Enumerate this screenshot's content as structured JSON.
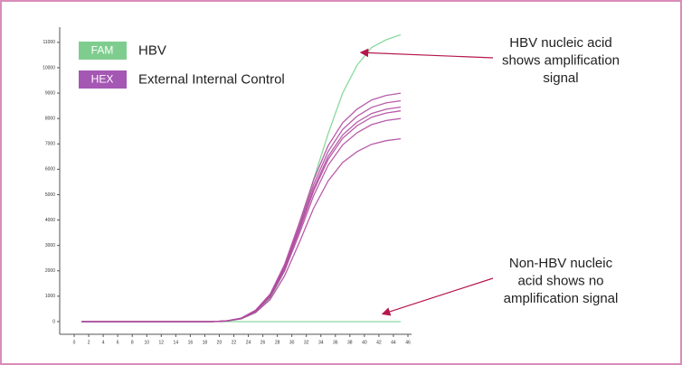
{
  "chart_data": {
    "type": "line",
    "x": [
      1,
      3,
      5,
      7,
      9,
      11,
      13,
      15,
      17,
      19,
      21,
      23,
      25,
      27,
      29,
      31,
      33,
      35,
      37,
      39,
      41,
      43,
      45
    ],
    "xlim": [
      -2,
      46.5
    ],
    "xticks": [
      0,
      2,
      4,
      6,
      8,
      10,
      12,
      14,
      16,
      18,
      20,
      22,
      24,
      26,
      28,
      30,
      32,
      34,
      36,
      38,
      40,
      42,
      44,
      46
    ],
    "ylim": [
      -500,
      11600
    ],
    "yticks": [
      0,
      1000,
      2000,
      3000,
      4000,
      5000,
      6000,
      7000,
      8000,
      9000,
      10000,
      11000
    ],
    "grid": false,
    "legend": "top-left",
    "series": [
      {
        "name": "HBV",
        "dye": "FAM",
        "color": "#80d496",
        "dye_color": "#7fcd8e",
        "curves": [
          [
            0,
            0,
            0,
            0,
            0,
            0,
            0,
            0,
            0,
            0,
            20,
            100,
            350,
            900,
            2000,
            3700,
            5600,
            7400,
            9000,
            10100,
            10800,
            11100,
            11300
          ],
          [
            0,
            0,
            0,
            0,
            0,
            0,
            0,
            0,
            0,
            0,
            0,
            0,
            0,
            0,
            0,
            0,
            0,
            0,
            0,
            0,
            0,
            0,
            0
          ]
        ]
      },
      {
        "name": "External Internal Control",
        "dye": "HEX",
        "color": "#b04aa0",
        "dye_color": "#a457b3",
        "curves": [
          [
            0,
            0,
            0,
            0,
            0,
            0,
            0,
            0,
            0,
            0,
            27,
            135,
            450,
            1080,
            2250,
            3870,
            5580,
            6930,
            7830,
            8370,
            8730,
            8910,
            9000
          ],
          [
            0,
            0,
            0,
            0,
            0,
            0,
            0,
            0,
            0,
            0,
            26,
            131,
            435,
            1044,
            2175,
            3741,
            5394,
            6699,
            7569,
            8091,
            8439,
            8613,
            8700
          ],
          [
            0,
            0,
            0,
            0,
            0,
            0,
            0,
            0,
            0,
            0,
            25,
            127,
            423,
            1014,
            2113,
            3634,
            5239,
            6507,
            7352,
            7859,
            8197,
            8366,
            8450
          ],
          [
            0,
            0,
            0,
            0,
            0,
            0,
            0,
            0,
            0,
            0,
            25,
            125,
            415,
            996,
            2075,
            3569,
            5146,
            6391,
            7221,
            7719,
            8051,
            8217,
            8300
          ],
          [
            0,
            0,
            0,
            0,
            0,
            0,
            0,
            0,
            0,
            0,
            24,
            120,
            400,
            960,
            2000,
            3440,
            4960,
            6160,
            6960,
            7440,
            7760,
            7920,
            8000
          ],
          [
            0,
            0,
            0,
            0,
            0,
            0,
            0,
            0,
            0,
            0,
            22,
            108,
            360,
            864,
            1800,
            3096,
            4464,
            5544,
            6264,
            6696,
            6984,
            7128,
            7200
          ]
        ]
      }
    ],
    "annotations": [
      {
        "lines": [
          "HBV nucleic acid",
          "shows amplification",
          "signal"
        ],
        "target": [
          39.5,
          10600
        ]
      },
      {
        "lines": [
          "Non-HBV nucleic",
          "acid shows no",
          "amplification signal"
        ],
        "target": [
          42.5,
          300
        ]
      }
    ]
  }
}
